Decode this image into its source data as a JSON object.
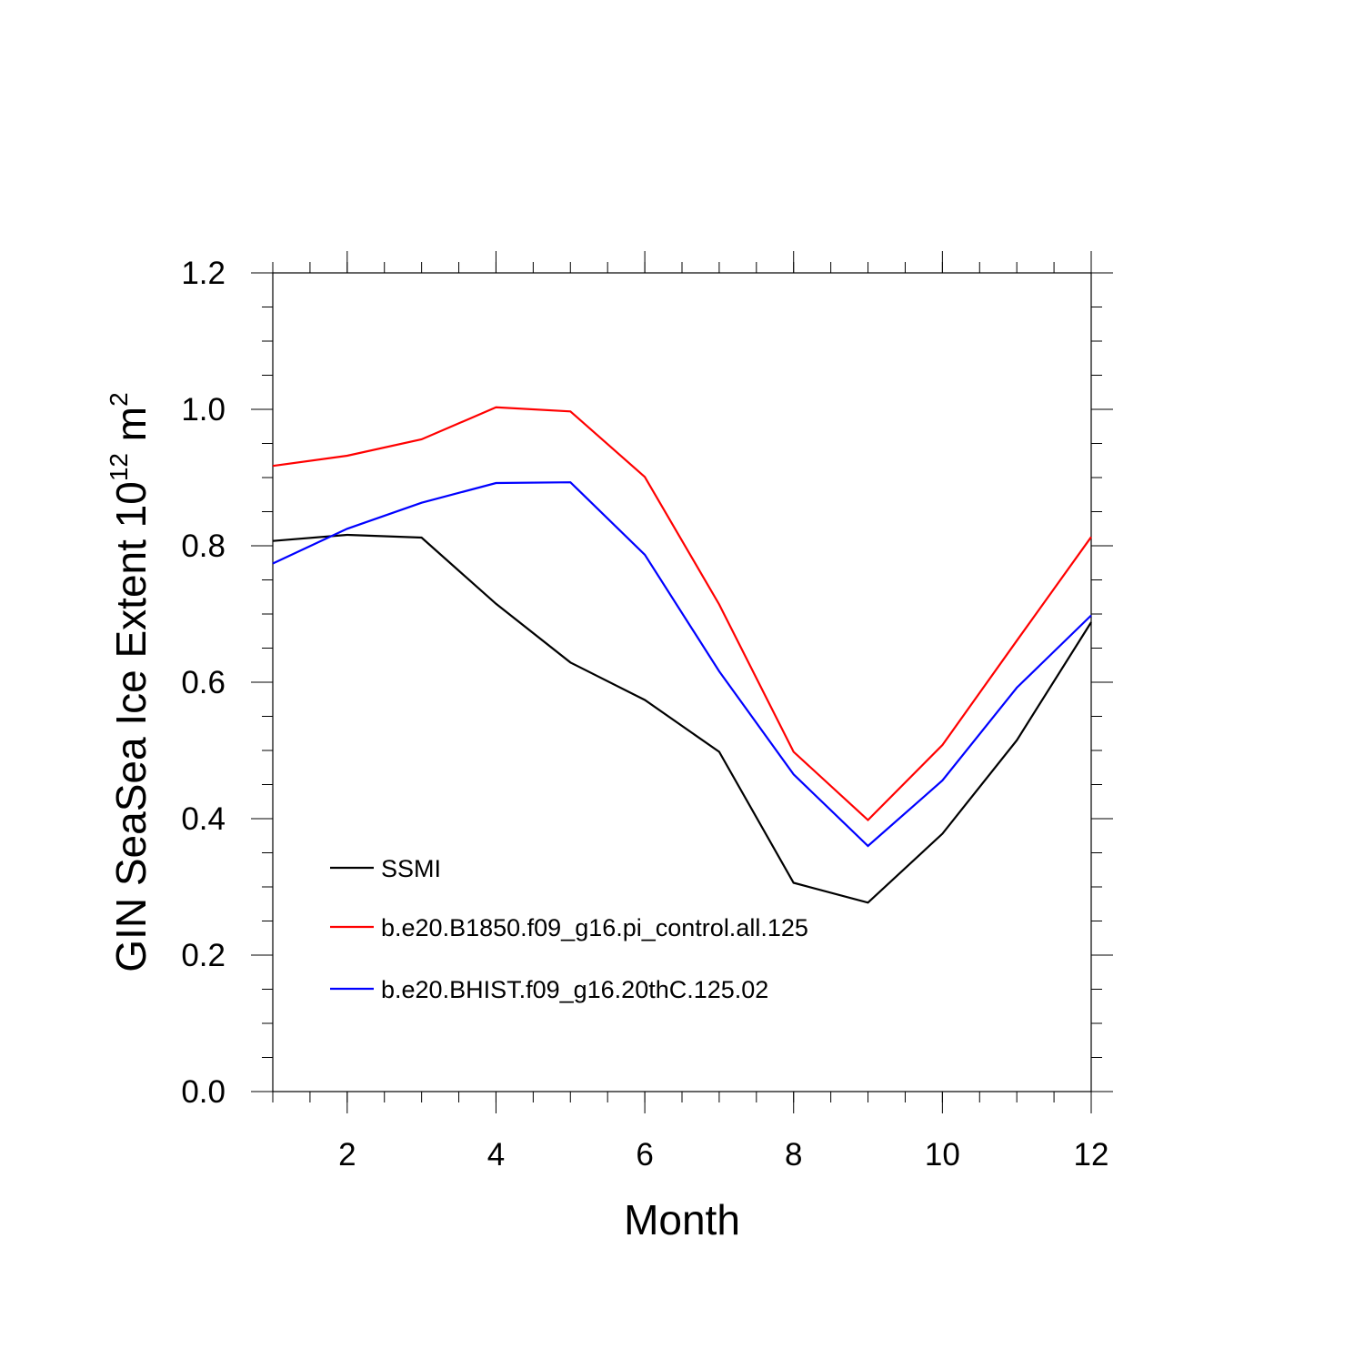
{
  "chart_data": {
    "type": "line",
    "title": "",
    "xlabel": "Month",
    "ylabel": {
      "prefix": "GIN SeaSea Ice Extent 10",
      "exponent": "12",
      "unit": " m",
      "unit_exponent": "2"
    },
    "xlim": [
      1,
      12
    ],
    "ylim": [
      0.0,
      1.2
    ],
    "x_ticks": [
      2,
      4,
      6,
      8,
      10,
      12
    ],
    "x_tick_labels": [
      "2",
      "4",
      "6",
      "8",
      "10",
      "12"
    ],
    "y_ticks": [
      0.0,
      0.2,
      0.4,
      0.6,
      0.8,
      1.0,
      1.2
    ],
    "y_tick_labels": [
      "0.0",
      "0.2",
      "0.4",
      "0.6",
      "0.8",
      "1.0",
      "1.2"
    ],
    "grid": false,
    "legend_position": "lower-left",
    "x": [
      1,
      2,
      3,
      4,
      5,
      6,
      7,
      8,
      9,
      10,
      11,
      12
    ],
    "series": [
      {
        "name": "SSMI",
        "color": "#000000",
        "values": [
          0.807,
          0.816,
          0.812,
          0.715,
          0.629,
          0.574,
          0.498,
          0.306,
          0.277,
          0.378,
          0.515,
          0.688
        ]
      },
      {
        "name": "b.e20.B1850.f09_g16.pi_control.all.125",
        "color": "#ff0000",
        "values": [
          0.917,
          0.932,
          0.956,
          1.003,
          0.997,
          0.901,
          0.714,
          0.498,
          0.398,
          0.508,
          0.661,
          0.813
        ]
      },
      {
        "name": "b.e20.BHIST.f09_g16.20thC.125.02",
        "color": "#0000ff",
        "values": [
          0.774,
          0.825,
          0.863,
          0.892,
          0.893,
          0.787,
          0.616,
          0.465,
          0.36,
          0.456,
          0.592,
          0.698
        ]
      }
    ]
  }
}
